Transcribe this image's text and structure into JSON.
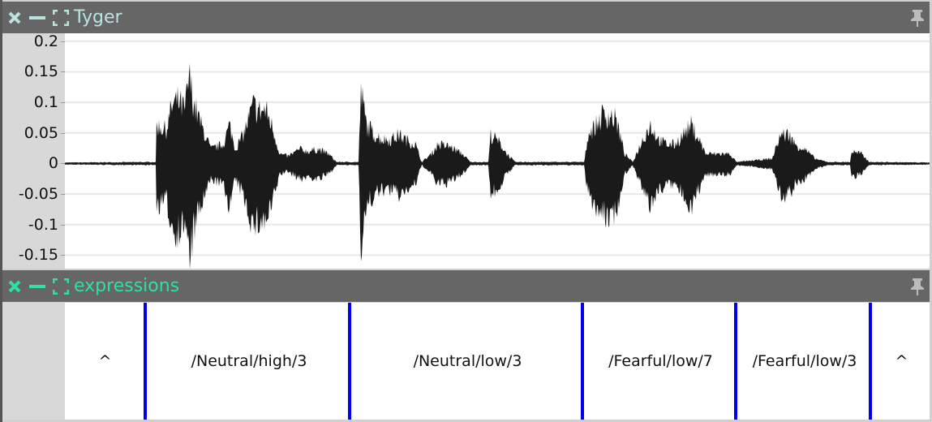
{
  "panes": [
    {
      "title": "Tyger",
      "title_color": "#b9e4e0",
      "icons": [
        "close-icon",
        "minimize-icon",
        "maximize-icon",
        "pin-icon"
      ]
    },
    {
      "title": "expressions",
      "title_color": "#2ee0a8",
      "icons": [
        "close-icon",
        "minimize-icon",
        "maximize-icon",
        "pin-icon"
      ]
    }
  ],
  "waveform": {
    "y_ticks": [
      "0.2",
      "0.15",
      "0.1",
      "0.05",
      "0",
      "-0.05",
      "-0.1",
      "-0.15"
    ],
    "y_tick_values": [
      0.2,
      0.15,
      0.1,
      0.05,
      0,
      -0.05,
      -0.1,
      -0.15
    ],
    "ylim": [
      -0.172,
      0.213
    ],
    "color": "#1a1a1a"
  },
  "expressions": {
    "boundary_color": "#0000ee",
    "segments": [
      {
        "label": "^"
      },
      {
        "label": "/Neutral/high/3"
      },
      {
        "label": "/Neutral/low/3"
      },
      {
        "label": "/Fearful/low/7"
      },
      {
        "label": "/Fearful/low/3"
      },
      {
        "label": "^"
      }
    ]
  }
}
